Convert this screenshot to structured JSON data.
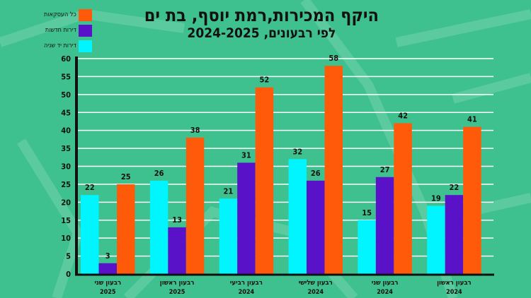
{
  "title": "היקף המכירות,רמת יוסף, בת ים",
  "subtitle": "לפי רבעונים, 2024-2025",
  "legend": [
    {
      "label": "כל העסקאות",
      "color": "#ff5a0a"
    },
    {
      "label": "דירות חדשות",
      "color": "#5a12c8"
    },
    {
      "label": "דירות יד שניה",
      "color": "#00f5ff"
    }
  ],
  "chart_data": {
    "type": "bar",
    "title": "היקף המכירות,רמת יוסף, בת ים",
    "subtitle": "לפי רבעונים, 2024-2025",
    "categories": [
      {
        "quarter": "רבעון שני",
        "year": "2025"
      },
      {
        "quarter": "רבעון ראשון",
        "year": "2025"
      },
      {
        "quarter": "רבעון רביעי",
        "year": "2024"
      },
      {
        "quarter": "רבעון שלישי",
        "year": "2024"
      },
      {
        "quarter": "רבעון שני",
        "year": "2024"
      },
      {
        "quarter": "רבעון ראשון",
        "year": "2024"
      }
    ],
    "series": [
      {
        "name": "דירות יד שניה",
        "color": "#00f5ff",
        "values": [
          22,
          26,
          21,
          32,
          15,
          19
        ]
      },
      {
        "name": "דירות חדשות",
        "color": "#5a12c8",
        "values": [
          3,
          13,
          31,
          26,
          27,
          22
        ]
      },
      {
        "name": "כל העסקאות",
        "color": "#ff5a0a",
        "values": [
          25,
          38,
          52,
          58,
          42,
          41
        ]
      }
    ],
    "yticks": [
      0,
      5,
      10,
      15,
      20,
      25,
      30,
      35,
      40,
      45,
      50,
      55,
      60
    ],
    "ylim": [
      0,
      60
    ],
    "grid": true,
    "legend_position": "top-left"
  }
}
